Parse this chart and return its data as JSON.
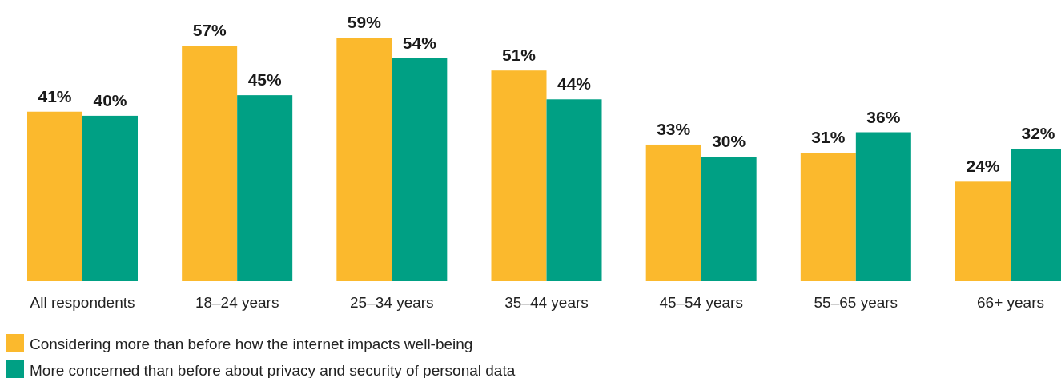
{
  "chart_data": {
    "type": "bar",
    "categories": [
      "All respondents",
      "18–24 years",
      "25–34 years",
      "35–44 years",
      "45–54 years",
      "55–65 years",
      "66+ years"
    ],
    "series": [
      {
        "name": "Considering more than before how the internet impacts well-being",
        "color": "#fbb92d",
        "values": [
          41,
          57,
          59,
          51,
          33,
          31,
          24
        ],
        "value_labels": [
          "41%",
          "57%",
          "59%",
          "51%",
          "33%",
          "31%",
          "24%"
        ]
      },
      {
        "name": "More concerned than before about privacy and security of personal data",
        "color": "#00a084",
        "values": [
          40,
          45,
          54,
          44,
          30,
          36,
          32
        ],
        "value_labels": [
          "40%",
          "45%",
          "54%",
          "44%",
          "30%",
          "36%",
          "32%"
        ]
      }
    ],
    "legend": "bottom left"
  }
}
